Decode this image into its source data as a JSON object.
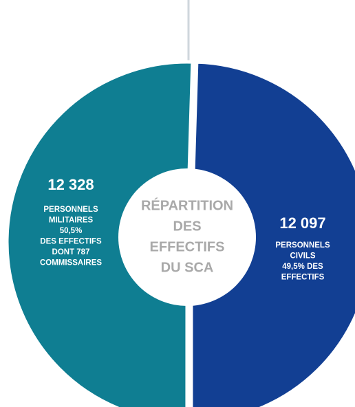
{
  "chart_data": {
    "type": "pie",
    "title_lines": [
      "RÉPARTITION",
      "DES",
      "EFFECTIFS",
      "DU SCA"
    ],
    "values": [
      12097,
      12328
    ],
    "value_labels": [
      "12 097",
      "12 328"
    ],
    "labels": [
      [
        "PERSONNELS",
        "CIVILS",
        "49,5% DES",
        "EFFECTIFS"
      ],
      [
        "PERSONNELS",
        "MILITAIRES",
        "50,5%",
        "DES EFFECTIFS",
        "DONT 787",
        "COMMISSAIRES"
      ]
    ],
    "colors": [
      "#123f93",
      "#0f7e92"
    ]
  }
}
